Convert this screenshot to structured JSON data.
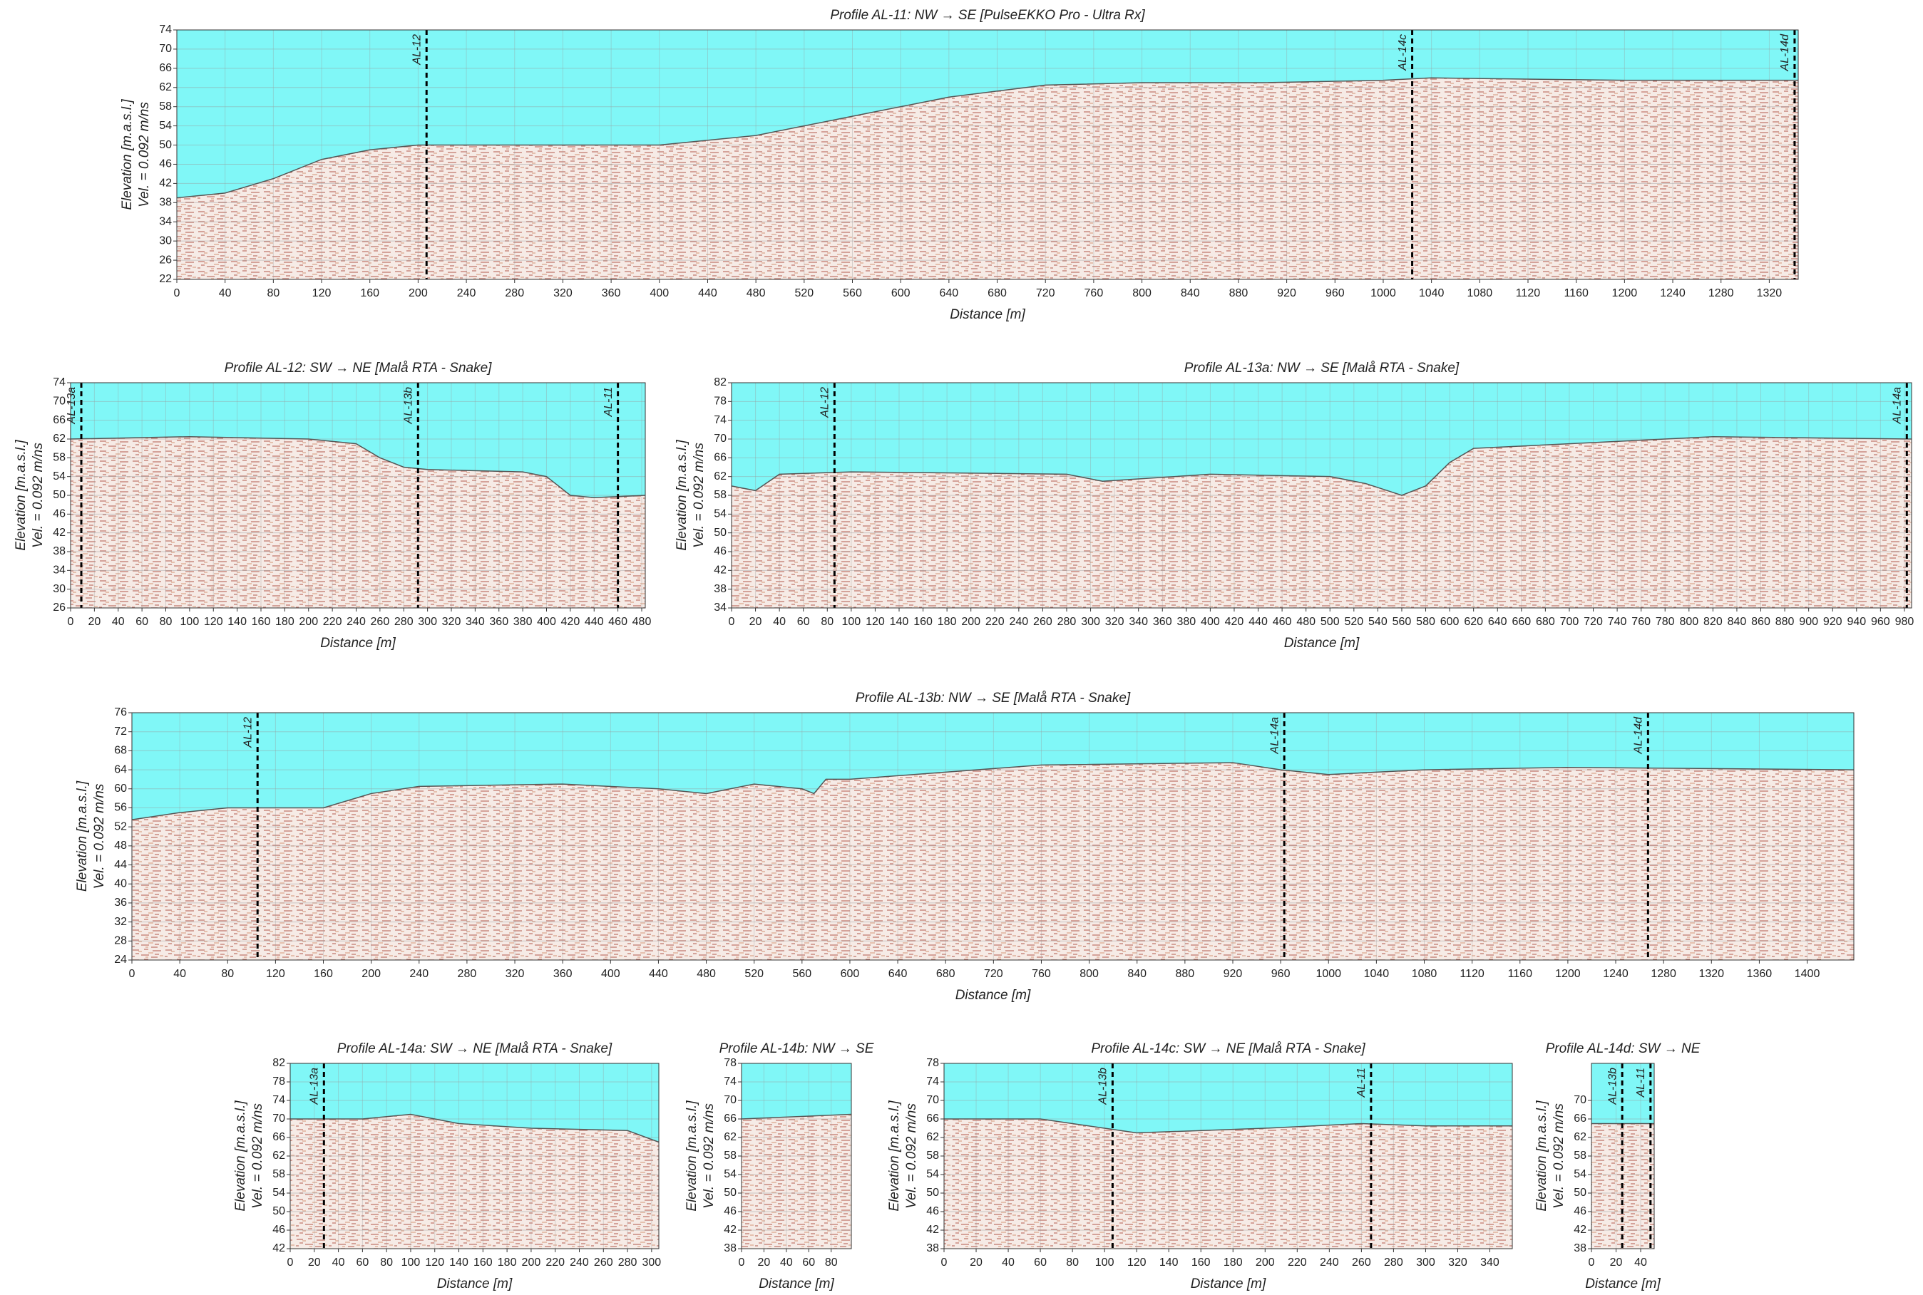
{
  "chart_data": [
    {
      "type": "radargram",
      "title": "Profile AL-11: NW → SE [PulseEKKO Pro - Ultra Rx]",
      "xlabel": "Distance  [m]",
      "ylabel": [
        "Elevation [m.a.s.l.]",
        "Vel. = 0.092 m/ns"
      ],
      "xlim": [
        0,
        1344
      ],
      "ylim": [
        22,
        74
      ],
      "xticks": [
        0,
        40,
        80,
        120,
        160,
        200,
        240,
        280,
        320,
        360,
        400,
        440,
        480,
        520,
        560,
        600,
        640,
        680,
        720,
        760,
        800,
        840,
        880,
        920,
        960,
        1000,
        1040,
        1080,
        1120,
        1160,
        1200,
        1240,
        1280,
        1320
      ],
      "yticks": [
        22,
        26,
        30,
        34,
        38,
        42,
        46,
        50,
        54,
        58,
        62,
        66,
        70,
        74
      ],
      "surface": {
        "x": [
          0,
          40,
          80,
          120,
          160,
          200,
          300,
          400,
          480,
          560,
          640,
          720,
          800,
          900,
          1000,
          1040,
          1200,
          1344
        ],
        "values": [
          39,
          40,
          43,
          47,
          49,
          50,
          50,
          50,
          52,
          56,
          60,
          62.5,
          63,
          63,
          63.5,
          64,
          63.5,
          63.5
        ]
      },
      "markers": [
        {
          "label": "AL-12",
          "x": 207
        },
        {
          "label": "AL-14c",
          "x": 1024
        },
        {
          "label": "AL-14d",
          "x": 1341
        }
      ]
    },
    {
      "type": "radargram",
      "title": "Profile AL-12: SW → NE [Malå RTA - Snake]",
      "xlabel": "Distance  [m]",
      "ylabel": [
        "Elevation [m.a.s.l.]",
        "Vel. = 0.092 m/ns"
      ],
      "xlim": [
        0,
        483
      ],
      "ylim": [
        26,
        74
      ],
      "xticks": [
        0,
        20,
        40,
        60,
        80,
        100,
        120,
        140,
        160,
        180,
        200,
        220,
        240,
        260,
        280,
        300,
        320,
        340,
        360,
        380,
        400,
        420,
        440,
        460,
        480
      ],
      "yticks": [
        26,
        30,
        34,
        38,
        42,
        46,
        50,
        54,
        58,
        62,
        66,
        70,
        74
      ],
      "surface": {
        "x": [
          0,
          100,
          200,
          240,
          260,
          280,
          300,
          380,
          400,
          420,
          440,
          483
        ],
        "values": [
          62,
          62.5,
          62,
          61,
          58,
          56,
          55.5,
          55,
          54,
          50,
          49.5,
          50
        ]
      },
      "markers": [
        {
          "label": "AL-13a",
          "x": 9
        },
        {
          "label": "AL-13b",
          "x": 292
        },
        {
          "label": "AL-11",
          "x": 460
        }
      ]
    },
    {
      "type": "radargram",
      "title": "Profile AL-13a: NW → SE [Malå RTA - Snake]",
      "xlabel": "Distance  [m]",
      "ylabel": [
        "Elevation [m.a.s.l.]",
        "Vel. = 0.092 m/ns"
      ],
      "xlim": [
        0,
        986
      ],
      "ylim": [
        34,
        82
      ],
      "xticks": [
        0,
        20,
        40,
        60,
        80,
        100,
        120,
        140,
        160,
        180,
        200,
        220,
        240,
        260,
        280,
        300,
        320,
        340,
        360,
        380,
        400,
        420,
        440,
        460,
        480,
        500,
        520,
        540,
        560,
        580,
        600,
        620,
        640,
        660,
        680,
        700,
        720,
        740,
        760,
        780,
        800,
        820,
        840,
        860,
        880,
        900,
        920,
        940,
        960,
        980
      ],
      "yticks": [
        34,
        38,
        42,
        46,
        50,
        54,
        58,
        62,
        66,
        70,
        74,
        78,
        82
      ],
      "surface": {
        "x": [
          0,
          20,
          40,
          100,
          280,
          310,
          400,
          500,
          530,
          560,
          580,
          600,
          620,
          700,
          820,
          986
        ],
        "values": [
          60,
          59,
          62.5,
          63,
          62.5,
          61,
          62.5,
          62,
          60.5,
          58,
          60,
          65,
          68,
          69,
          70.5,
          70
        ]
      },
      "markers": [
        {
          "label": "AL-12",
          "x": 86
        },
        {
          "label": "AL-14a",
          "x": 982
        }
      ]
    },
    {
      "type": "radargram",
      "title": "Profile AL-13b: NW → SE [Malå RTA - Snake]",
      "xlabel": "Distance  [m]",
      "ylabel": [
        "Elevation [m.a.s.l.]",
        "Vel. = 0.092 m/ns"
      ],
      "xlim": [
        0,
        1439
      ],
      "ylim": [
        24,
        76
      ],
      "xticks": [
        0,
        40,
        80,
        120,
        160,
        200,
        240,
        280,
        320,
        360,
        400,
        440,
        480,
        520,
        560,
        600,
        640,
        680,
        720,
        760,
        800,
        840,
        880,
        920,
        960,
        1000,
        1040,
        1080,
        1120,
        1160,
        1200,
        1240,
        1280,
        1320,
        1360,
        1400
      ],
      "yticks": [
        24,
        28,
        32,
        36,
        40,
        44,
        48,
        52,
        56,
        60,
        64,
        68,
        72,
        76
      ],
      "surface": {
        "x": [
          0,
          40,
          80,
          160,
          200,
          240,
          360,
          440,
          480,
          520,
          560,
          570,
          580,
          600,
          680,
          760,
          920,
          960,
          1000,
          1040,
          1080,
          1200,
          1439
        ],
        "values": [
          53.5,
          55,
          56,
          56,
          59,
          60.5,
          61,
          60,
          59,
          61,
          60,
          59,
          62,
          62,
          63.5,
          65,
          65.5,
          64,
          63,
          63.5,
          64,
          64.5,
          64
        ]
      },
      "markers": [
        {
          "label": "AL-12",
          "x": 105
        },
        {
          "label": "AL-14a",
          "x": 963
        },
        {
          "label": "AL-14d",
          "x": 1267
        }
      ]
    },
    {
      "type": "radargram",
      "title": "Profile AL-14a: SW → NE [Malå RTA - Snake]",
      "xlabel": "Distance  [m]",
      "ylabel": [
        "Elevation [m.a.s.l.]",
        "Vel. = 0.092 m/ns"
      ],
      "xlim": [
        0,
        306
      ],
      "ylim": [
        42,
        82
      ],
      "xticks": [
        0,
        20,
        40,
        60,
        80,
        100,
        120,
        140,
        160,
        180,
        200,
        220,
        240,
        260,
        280,
        300
      ],
      "yticks": [
        42,
        46,
        50,
        54,
        58,
        62,
        66,
        70,
        74,
        78,
        82
      ],
      "surface": {
        "x": [
          0,
          60,
          100,
          140,
          200,
          280,
          306
        ],
        "values": [
          70,
          70,
          71,
          69,
          68,
          67.5,
          65
        ]
      },
      "markers": [
        {
          "label": "AL-13a",
          "x": 28
        }
      ]
    },
    {
      "type": "radargram",
      "title": "Profile AL-14b: NW → SE",
      "xlabel": "Distance  [m]",
      "ylabel": [
        "Elevation [m.a.s.l.]",
        "Vel. = 0.092 m/ns"
      ],
      "xlim": [
        0,
        98
      ],
      "ylim": [
        38,
        78
      ],
      "xticks": [
        0,
        20,
        40,
        60,
        80
      ],
      "yticks": [
        38,
        42,
        46,
        50,
        54,
        58,
        62,
        66,
        70,
        74,
        78
      ],
      "surface": {
        "x": [
          0,
          98
        ],
        "values": [
          66,
          67
        ]
      },
      "markers": []
    },
    {
      "type": "radargram",
      "title": "Profile AL-14c: SW → NE [Malå RTA - Snake]",
      "xlabel": "Distance  [m]",
      "ylabel": [
        "Elevation [m.a.s.l.]",
        "Vel. = 0.092 m/ns"
      ],
      "xlim": [
        0,
        354
      ],
      "ylim": [
        38,
        78
      ],
      "xticks": [
        0,
        20,
        40,
        60,
        80,
        100,
        120,
        140,
        160,
        180,
        200,
        220,
        240,
        260,
        280,
        300,
        320,
        340
      ],
      "yticks": [
        38,
        42,
        46,
        50,
        54,
        58,
        62,
        66,
        70,
        74,
        78
      ],
      "surface": {
        "x": [
          0,
          60,
          100,
          120,
          200,
          260,
          300,
          354
        ],
        "values": [
          66,
          66,
          64,
          63,
          64,
          65,
          64.5,
          64.5
        ]
      },
      "markers": [
        {
          "label": "AL-13b",
          "x": 105
        },
        {
          "label": "AL-11",
          "x": 266
        }
      ]
    },
    {
      "type": "radargram",
      "title": "Profile AL-14d: SW → NE",
      "xlabel": "Distance  [m]",
      "ylabel": [
        "Elevation [m.a.s.l.]",
        "Vel. = 0.092 m/ns"
      ],
      "xlim": [
        0,
        51
      ],
      "ylim": [
        38,
        78
      ],
      "xticks": [
        0,
        20,
        40
      ],
      "yticks": [
        38,
        42,
        46,
        50,
        54,
        58,
        62,
        66,
        70
      ],
      "surface": {
        "x": [
          0,
          51
        ],
        "values": [
          65,
          65
        ]
      },
      "markers": [
        {
          "label": "AL-13b",
          "x": 25
        },
        {
          "label": "AL-11",
          "x": 48
        }
      ]
    }
  ]
}
